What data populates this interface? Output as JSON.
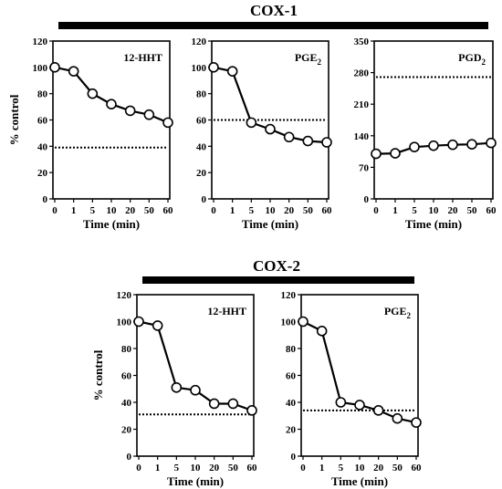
{
  "groups": [
    {
      "title": "COX-1"
    },
    {
      "title": "COX-2"
    }
  ],
  "chart_data": [
    {
      "type": "line",
      "group": "COX-1",
      "label": "12-HHT",
      "label_sub": "",
      "x": [
        "0",
        "1",
        "5",
        "10",
        "20",
        "50",
        "60"
      ],
      "values": [
        100,
        97,
        80,
        72,
        67,
        64,
        58
      ],
      "threshold": 39,
      "xlabel": "Time (min)",
      "ylabel": "% control",
      "ylim": [
        0,
        120
      ],
      "yticks": [
        "0",
        "20",
        "40",
        "60",
        "80",
        "100",
        "120"
      ]
    },
    {
      "type": "line",
      "group": "COX-1",
      "label": "PGE",
      "label_sub": "2",
      "x": [
        "0",
        "1",
        "5",
        "10",
        "20",
        "50",
        "60"
      ],
      "values": [
        100,
        97,
        58,
        53,
        47,
        44,
        43
      ],
      "threshold": 60,
      "xlabel": "Time (min)",
      "ylabel": "",
      "ylim": [
        0,
        120
      ],
      "yticks": [
        "0",
        "20",
        "40",
        "60",
        "80",
        "100",
        "120"
      ]
    },
    {
      "type": "line",
      "group": "COX-1",
      "label": "PGD",
      "label_sub": "2",
      "x": [
        "0",
        "1",
        "5",
        "10",
        "20",
        "50",
        "60"
      ],
      "values": [
        100,
        101,
        115,
        118,
        120,
        121,
        124
      ],
      "threshold": 270,
      "xlabel": "Time (min)",
      "ylabel": "",
      "ylim": [
        0,
        350
      ],
      "yticks": [
        "0",
        "70",
        "140",
        "210",
        "280",
        "350"
      ]
    },
    {
      "type": "line",
      "group": "COX-2",
      "label": "12-HHT",
      "label_sub": "",
      "x": [
        "0",
        "1",
        "5",
        "10",
        "20",
        "50",
        "60"
      ],
      "values": [
        100,
        97,
        51,
        49,
        39,
        39,
        34
      ],
      "threshold": 31,
      "xlabel": "Time (min)",
      "ylabel": "% control",
      "ylim": [
        0,
        120
      ],
      "yticks": [
        "0",
        "20",
        "40",
        "60",
        "80",
        "100",
        "120"
      ]
    },
    {
      "type": "line",
      "group": "COX-2",
      "label": "PGE",
      "label_sub": "2",
      "x": [
        "0",
        "1",
        "5",
        "10",
        "20",
        "50",
        "60"
      ],
      "values": [
        100,
        93,
        40,
        38,
        34,
        28,
        25
      ],
      "threshold": 34,
      "xlabel": "Time (min)",
      "ylabel": "",
      "ylim": [
        0,
        120
      ],
      "yticks": [
        "0",
        "20",
        "40",
        "60",
        "80",
        "100",
        "120"
      ]
    }
  ]
}
